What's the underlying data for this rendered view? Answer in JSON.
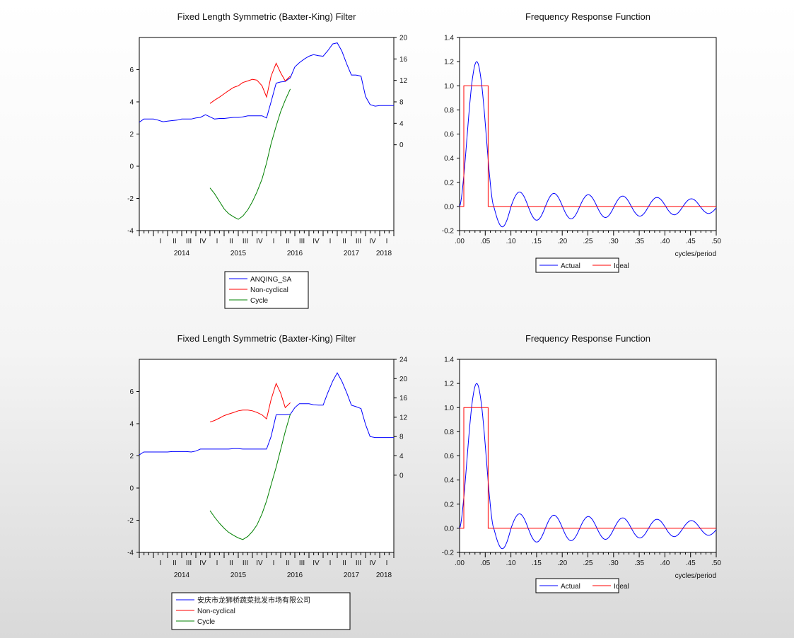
{
  "colors": {
    "series1": "#0000ff",
    "noncyclical": "#ff0000",
    "cycle": "#008000",
    "actual": "#0000ff",
    "ideal": "#ff0000"
  },
  "chart_data": [
    {
      "type": "line",
      "title": "Fixed Length Symmetric (Baxter-King) Filter",
      "time_range": [
        2013.75,
        2018.25
      ],
      "year_labels": [
        {
          "t": 2014.5,
          "label": "2014"
        },
        {
          "t": 2015.5,
          "label": "2015"
        },
        {
          "t": 2016.5,
          "label": "2016"
        },
        {
          "t": 2017.5,
          "label": "2017"
        },
        {
          "t": 2018.5,
          "label": "2018"
        }
      ],
      "quarter_labels": [
        "I",
        "II",
        "III",
        "IV"
      ],
      "left_axis": {
        "range": [
          -4,
          8
        ],
        "ticks": [
          -4,
          -2,
          0,
          2,
          4,
          6
        ]
      },
      "right_axis": {
        "range": [
          -16,
          20
        ],
        "ticks": [
          0,
          4,
          8,
          12,
          16,
          20
        ]
      },
      "legend": [
        "ANQING_SA",
        "Non-cyclical",
        "Cycle"
      ],
      "series": [
        {
          "name": "ANQING_SA",
          "axis": "right",
          "color": "blue",
          "x": [
            2013.75,
            2013.83,
            2013.92,
            2014.0,
            2014.08,
            2014.17,
            2014.25,
            2014.33,
            2014.42,
            2014.5,
            2014.58,
            2014.67,
            2014.75,
            2014.83,
            2014.92,
            2015.0,
            2015.08,
            2015.17,
            2015.25,
            2015.33,
            2015.42,
            2015.5,
            2015.58,
            2015.67,
            2015.75,
            2015.83,
            2015.92,
            2016.0,
            2016.08,
            2016.17,
            2016.25,
            2016.33,
            2016.42,
            2016.5,
            2016.58,
            2016.67,
            2016.75,
            2016.83,
            2016.92,
            2017.0,
            2017.08,
            2017.17,
            2017.25,
            2017.33,
            2017.42,
            2017.5,
            2017.58,
            2017.67,
            2017.75,
            2017.83,
            2017.92,
            2018.0,
            2018.08,
            2018.17,
            2018.25
          ],
          "y": [
            4.2,
            4.8,
            4.8,
            4.8,
            4.6,
            4.3,
            4.4,
            4.5,
            4.6,
            4.8,
            4.8,
            4.8,
            5.0,
            5.1,
            5.6,
            5.2,
            4.8,
            4.9,
            4.9,
            5.0,
            5.1,
            5.1,
            5.2,
            5.4,
            5.4,
            5.4,
            5.4,
            5.0,
            8.0,
            11.5,
            11.7,
            11.8,
            12.5,
            14.5,
            15.3,
            16.0,
            16.5,
            16.8,
            16.6,
            16.5,
            17.5,
            18.8,
            19.0,
            17.5,
            15.0,
            13.0,
            13.0,
            12.8,
            9.0,
            7.5,
            7.2,
            7.3,
            7.3,
            7.3,
            7.3
          ]
        },
        {
          "name": "Non-cyclical",
          "axis": "left",
          "color": "red",
          "x": [
            2015.0,
            2015.08,
            2015.17,
            2015.25,
            2015.33,
            2015.42,
            2015.5,
            2015.58,
            2015.67,
            2015.75,
            2015.83,
            2015.92,
            2016.0,
            2016.08,
            2016.17,
            2016.25,
            2016.33,
            2016.42
          ],
          "y": [
            3.9,
            4.1,
            4.3,
            4.5,
            4.7,
            4.9,
            5.0,
            5.2,
            5.3,
            5.4,
            5.35,
            5.0,
            4.3,
            5.6,
            6.4,
            5.8,
            5.3,
            5.6
          ]
        },
        {
          "name": "Cycle",
          "axis": "left",
          "color": "green",
          "x": [
            2015.0,
            2015.08,
            2015.17,
            2015.25,
            2015.33,
            2015.42,
            2015.5,
            2015.58,
            2015.67,
            2015.75,
            2015.83,
            2015.92,
            2016.0,
            2016.08,
            2016.17,
            2016.25,
            2016.33,
            2016.42
          ],
          "y": [
            -1.35,
            -1.7,
            -2.2,
            -2.65,
            -2.95,
            -3.15,
            -3.3,
            -3.1,
            -2.7,
            -2.2,
            -1.6,
            -0.8,
            0.2,
            1.4,
            2.5,
            3.4,
            4.1,
            4.8
          ]
        }
      ]
    },
    {
      "type": "line",
      "title": "Frequency Response Function",
      "xlabel": "cycles/period",
      "xlim": [
        0,
        0.5
      ],
      "ylim": [
        -0.2,
        1.4
      ],
      "x_ticks": [
        ".00",
        ".05",
        ".10",
        ".15",
        ".20",
        ".25",
        ".30",
        ".35",
        ".40",
        ".45",
        ".50"
      ],
      "y_ticks": [
        "-0.2",
        "0.0",
        "0.2",
        "0.4",
        "0.6",
        "0.8",
        "1.0",
        "1.2",
        "1.4"
      ],
      "legend": [
        "Actual",
        "Ideal"
      ],
      "series": [
        {
          "name": "Actual",
          "color": "blue",
          "peak_freq": 0.0333,
          "peak_value": 1.2,
          "ripple_amplitude": 0.08
        },
        {
          "name": "Ideal",
          "color": "red",
          "x": [
            0.0,
            0.0083,
            0.0083,
            0.0556,
            0.0556,
            0.5
          ],
          "y": [
            0,
            0,
            1,
            1,
            0,
            0
          ]
        }
      ]
    },
    {
      "type": "line",
      "title": "Fixed Length Symmetric (Baxter-King) Filter",
      "time_range": [
        2013.75,
        2018.25
      ],
      "year_labels": [
        {
          "t": 2014.5,
          "label": "2014"
        },
        {
          "t": 2015.5,
          "label": "2015"
        },
        {
          "t": 2016.5,
          "label": "2016"
        },
        {
          "t": 2017.5,
          "label": "2017"
        },
        {
          "t": 2018.5,
          "label": "2018"
        }
      ],
      "quarter_labels": [
        "I",
        "II",
        "III",
        "IV"
      ],
      "left_axis": {
        "range": [
          -4,
          8
        ],
        "ticks": [
          -4,
          -2,
          0,
          2,
          4,
          6
        ]
      },
      "right_axis": {
        "range": [
          -16,
          24
        ],
        "ticks": [
          0,
          4,
          8,
          12,
          16,
          20,
          24
        ]
      },
      "legend": [
        "安庆市龙狮桥蔬菜批发市场有限公司",
        "Non-cyclical",
        "Cycle"
      ],
      "series": [
        {
          "name": "安庆市龙狮桥蔬菜批发市场有限公司",
          "axis": "right",
          "color": "blue",
          "x": [
            2013.75,
            2013.83,
            2013.92,
            2014.0,
            2014.08,
            2014.17,
            2014.25,
            2014.33,
            2014.42,
            2014.5,
            2014.58,
            2014.67,
            2014.75,
            2014.83,
            2014.92,
            2015.0,
            2015.08,
            2015.17,
            2015.25,
            2015.33,
            2015.42,
            2015.5,
            2015.58,
            2015.67,
            2015.75,
            2015.83,
            2015.92,
            2016.0,
            2016.08,
            2016.17,
            2016.25,
            2016.33,
            2016.42,
            2016.5,
            2016.58,
            2016.67,
            2016.75,
            2016.83,
            2016.92,
            2017.0,
            2017.08,
            2017.17,
            2017.25,
            2017.33,
            2017.42,
            2017.5,
            2017.58,
            2017.67,
            2017.75,
            2017.83,
            2017.92,
            2018.0,
            2018.08,
            2018.17,
            2018.25
          ],
          "y": [
            4.2,
            4.8,
            4.8,
            4.8,
            4.8,
            4.8,
            4.8,
            4.9,
            4.9,
            4.9,
            4.9,
            4.8,
            5.0,
            5.4,
            5.4,
            5.4,
            5.4,
            5.4,
            5.4,
            5.4,
            5.5,
            5.5,
            5.4,
            5.4,
            5.4,
            5.4,
            5.4,
            5.4,
            8.0,
            12.5,
            12.5,
            12.5,
            12.6,
            14.0,
            14.8,
            14.8,
            14.8,
            14.6,
            14.5,
            14.5,
            17.0,
            19.5,
            21.2,
            19.5,
            17.0,
            14.5,
            14.2,
            13.8,
            10.5,
            8.0,
            7.8,
            7.8,
            7.8,
            7.8,
            7.8
          ]
        },
        {
          "name": "Non-cyclical",
          "axis": "left",
          "color": "red",
          "x": [
            2015.0,
            2015.08,
            2015.17,
            2015.25,
            2015.33,
            2015.42,
            2015.5,
            2015.58,
            2015.67,
            2015.75,
            2015.83,
            2015.92,
            2016.0,
            2016.08,
            2016.17,
            2016.25,
            2016.33,
            2016.42
          ],
          "y": [
            4.1,
            4.2,
            4.35,
            4.5,
            4.6,
            4.7,
            4.8,
            4.85,
            4.85,
            4.8,
            4.7,
            4.55,
            4.3,
            5.5,
            6.5,
            5.9,
            5.0,
            5.3
          ]
        },
        {
          "name": "Cycle",
          "axis": "left",
          "color": "green",
          "x": [
            2015.0,
            2015.08,
            2015.17,
            2015.25,
            2015.33,
            2015.42,
            2015.5,
            2015.58,
            2015.67,
            2015.75,
            2015.83,
            2015.92,
            2016.0,
            2016.08,
            2016.17,
            2016.25,
            2016.33,
            2016.42
          ],
          "y": [
            -1.4,
            -1.8,
            -2.2,
            -2.5,
            -2.75,
            -2.95,
            -3.1,
            -3.2,
            -3.0,
            -2.7,
            -2.3,
            -1.6,
            -0.8,
            0.2,
            1.3,
            2.4,
            3.5,
            4.6
          ]
        }
      ]
    },
    {
      "type": "line",
      "title": "Frequency Response Function",
      "xlabel": "cycles/period",
      "xlim": [
        0,
        0.5
      ],
      "ylim": [
        -0.2,
        1.4
      ],
      "x_ticks": [
        ".00",
        ".05",
        ".10",
        ".15",
        ".20",
        ".25",
        ".30",
        ".35",
        ".40",
        ".45",
        ".50"
      ],
      "y_ticks": [
        "-0.2",
        "0.0",
        "0.2",
        "0.4",
        "0.6",
        "0.8",
        "1.0",
        "1.2",
        "1.4"
      ],
      "legend": [
        "Actual",
        "Ideal"
      ],
      "series": [
        {
          "name": "Actual",
          "color": "blue",
          "peak_freq": 0.0333,
          "peak_value": 1.2,
          "ripple_amplitude": 0.08
        },
        {
          "name": "Ideal",
          "color": "red",
          "x": [
            0.0,
            0.0083,
            0.0083,
            0.0556,
            0.0556,
            0.5
          ],
          "y": [
            0,
            0,
            1,
            1,
            0,
            0
          ]
        }
      ]
    }
  ]
}
